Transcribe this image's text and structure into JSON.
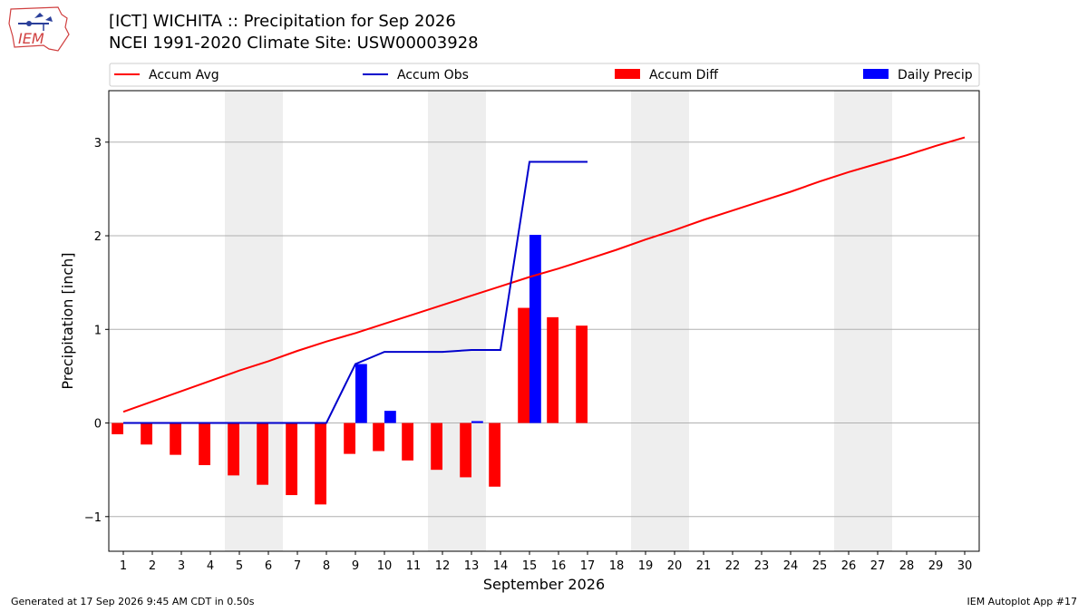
{
  "logo_text": "IEM",
  "footer": {
    "generated": "Generated at 17 Sep 2026 9:45 AM CDT in 0.50s",
    "app": "IEM Autoplot App #17"
  },
  "chart_data": {
    "type": "bar",
    "title": "[ICT] WICHITA :: Precipitation for Sep 2026",
    "subtitle": "NCEI 1991-2020 Climate Site: USW00003928",
    "xlabel": "September 2026",
    "ylabel": "Precipitation [inch]",
    "ylim": [
      -1.37,
      3.55
    ],
    "xlim": [
      0.5,
      30.5
    ],
    "yticks": [
      -1,
      0,
      1,
      2,
      3
    ],
    "ytick_labels": [
      "−1",
      "0",
      "1",
      "2",
      "3"
    ],
    "grid": "horizontal",
    "legend_position": "top",
    "days": [
      1,
      2,
      3,
      4,
      5,
      6,
      7,
      8,
      9,
      10,
      11,
      12,
      13,
      14,
      15,
      16,
      17,
      18,
      19,
      20,
      21,
      22,
      23,
      24,
      25,
      26,
      27,
      28,
      29,
      30
    ],
    "weekend_bands": [
      [
        4.5,
        6.5
      ],
      [
        11.5,
        13.5
      ],
      [
        18.5,
        20.5
      ],
      [
        25.5,
        27.5
      ]
    ],
    "series": [
      {
        "name": "Accum Avg",
        "kind": "line",
        "color": "#ff0000",
        "x": [
          1,
          2,
          3,
          4,
          5,
          6,
          7,
          8,
          9,
          10,
          11,
          12,
          13,
          14,
          15,
          16,
          17,
          18,
          19,
          20,
          21,
          22,
          23,
          24,
          25,
          26,
          27,
          28,
          29,
          30
        ],
        "values": [
          0.12,
          0.23,
          0.34,
          0.45,
          0.56,
          0.66,
          0.77,
          0.87,
          0.96,
          1.06,
          1.16,
          1.26,
          1.36,
          1.46,
          1.56,
          1.65,
          1.75,
          1.85,
          1.96,
          2.06,
          2.17,
          2.27,
          2.37,
          2.47,
          2.58,
          2.68,
          2.77,
          2.86,
          2.96,
          3.05
        ]
      },
      {
        "name": "Accum Obs",
        "kind": "line",
        "color": "#0000cc",
        "x": [
          1,
          2,
          3,
          4,
          5,
          6,
          7,
          8,
          9,
          10,
          11,
          12,
          13,
          14,
          15,
          16,
          17
        ],
        "values": [
          0,
          0,
          0,
          0,
          0,
          0,
          0,
          0,
          0.63,
          0.76,
          0.76,
          0.76,
          0.78,
          0.78,
          2.79,
          2.79,
          2.79
        ]
      },
      {
        "name": "Accum Diff",
        "kind": "bar",
        "color": "#ff0000",
        "x": [
          1,
          2,
          3,
          4,
          5,
          6,
          7,
          8,
          9,
          10,
          11,
          12,
          13,
          14,
          15,
          16,
          17
        ],
        "values": [
          -0.12,
          -0.23,
          -0.34,
          -0.45,
          -0.56,
          -0.66,
          -0.77,
          -0.87,
          -0.33,
          -0.3,
          -0.4,
          -0.5,
          -0.58,
          -0.68,
          1.23,
          1.13,
          1.04
        ]
      },
      {
        "name": "Daily Precip",
        "kind": "bar",
        "color": "#0000ff",
        "x": [
          9,
          10,
          13,
          15
        ],
        "values": [
          0.63,
          0.13,
          0.02,
          2.01
        ]
      }
    ]
  }
}
